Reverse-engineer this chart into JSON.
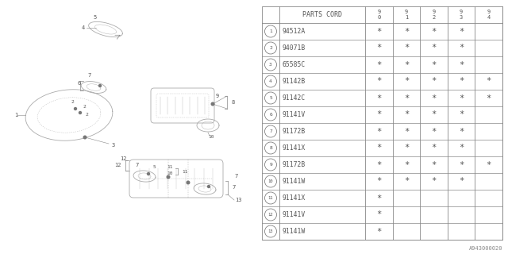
{
  "watermark": "A943000020",
  "table": {
    "header_col": "PARTS CORD",
    "header_years": [
      "9\n0",
      "9\n1",
      "9\n2",
      "9\n3",
      "9\n4"
    ],
    "rows": [
      {
        "num": "1",
        "part": "94512A",
        "marks": [
          1,
          1,
          1,
          1,
          0
        ]
      },
      {
        "num": "2",
        "part": "94071B",
        "marks": [
          1,
          1,
          1,
          1,
          0
        ]
      },
      {
        "num": "3",
        "part": "65585C",
        "marks": [
          1,
          1,
          1,
          1,
          0
        ]
      },
      {
        "num": "4",
        "part": "91142B",
        "marks": [
          1,
          1,
          1,
          1,
          1
        ]
      },
      {
        "num": "5",
        "part": "91142C",
        "marks": [
          1,
          1,
          1,
          1,
          1
        ]
      },
      {
        "num": "6",
        "part": "91141V",
        "marks": [
          1,
          1,
          1,
          1,
          0
        ]
      },
      {
        "num": "7",
        "part": "91172B",
        "marks": [
          1,
          1,
          1,
          1,
          0
        ]
      },
      {
        "num": "8",
        "part": "91141X",
        "marks": [
          1,
          1,
          1,
          1,
          0
        ]
      },
      {
        "num": "9",
        "part": "91172B",
        "marks": [
          1,
          1,
          1,
          1,
          1
        ]
      },
      {
        "num": "10",
        "part": "91141W",
        "marks": [
          1,
          1,
          1,
          1,
          0
        ]
      },
      {
        "num": "11",
        "part": "91141X",
        "marks": [
          1,
          0,
          0,
          0,
          0
        ]
      },
      {
        "num": "12",
        "part": "91141V",
        "marks": [
          1,
          0,
          0,
          0,
          0
        ]
      },
      {
        "num": "13",
        "part": "91141W",
        "marks": [
          1,
          0,
          0,
          0,
          0
        ]
      }
    ]
  },
  "bg_color": "#ffffff",
  "lc": "#aaaaaa",
  "tc": "#555555"
}
